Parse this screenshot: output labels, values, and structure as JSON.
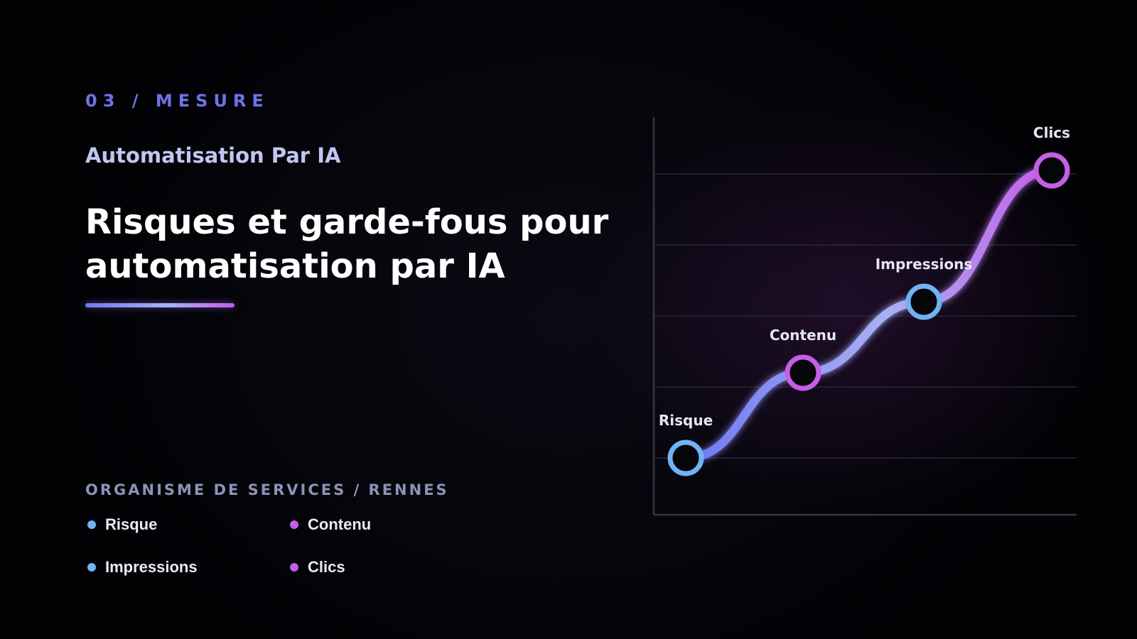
{
  "slide": {
    "eyebrow": "03 / MESURE",
    "subtitle": "Automatisation Par IA",
    "title": "Risques et garde-fous pour automatisation par IA",
    "organization": "ORGANISME DE SERVICES / RENNES"
  },
  "legend": [
    {
      "label": "Risque",
      "color": "#6fb3f2"
    },
    {
      "label": "Contenu",
      "color": "#c65ee6"
    },
    {
      "label": "Impressions",
      "color": "#6fb3f2"
    },
    {
      "label": "Clics",
      "color": "#c65ee6"
    }
  ],
  "colors": {
    "accent_blue": "#6b74e8",
    "line_start": "#6f78f0",
    "line_mid": "#a9b0f5",
    "line_end": "#c45ee8",
    "marker_blue": "#6fb3f2",
    "marker_purple": "#c65ee6"
  },
  "chart_data": {
    "type": "line",
    "categories": [
      "Risque",
      "Contenu",
      "Impressions",
      "Clics"
    ],
    "values": [
      1,
      2.2,
      3.2,
      5.05
    ],
    "ylim": [
      0.2,
      5.8
    ],
    "grid": true,
    "marker_colors": [
      "#6fb3f2",
      "#c65ee6",
      "#6fb3f2",
      "#c65ee6"
    ],
    "title": "",
    "xlabel": "",
    "ylabel": ""
  }
}
